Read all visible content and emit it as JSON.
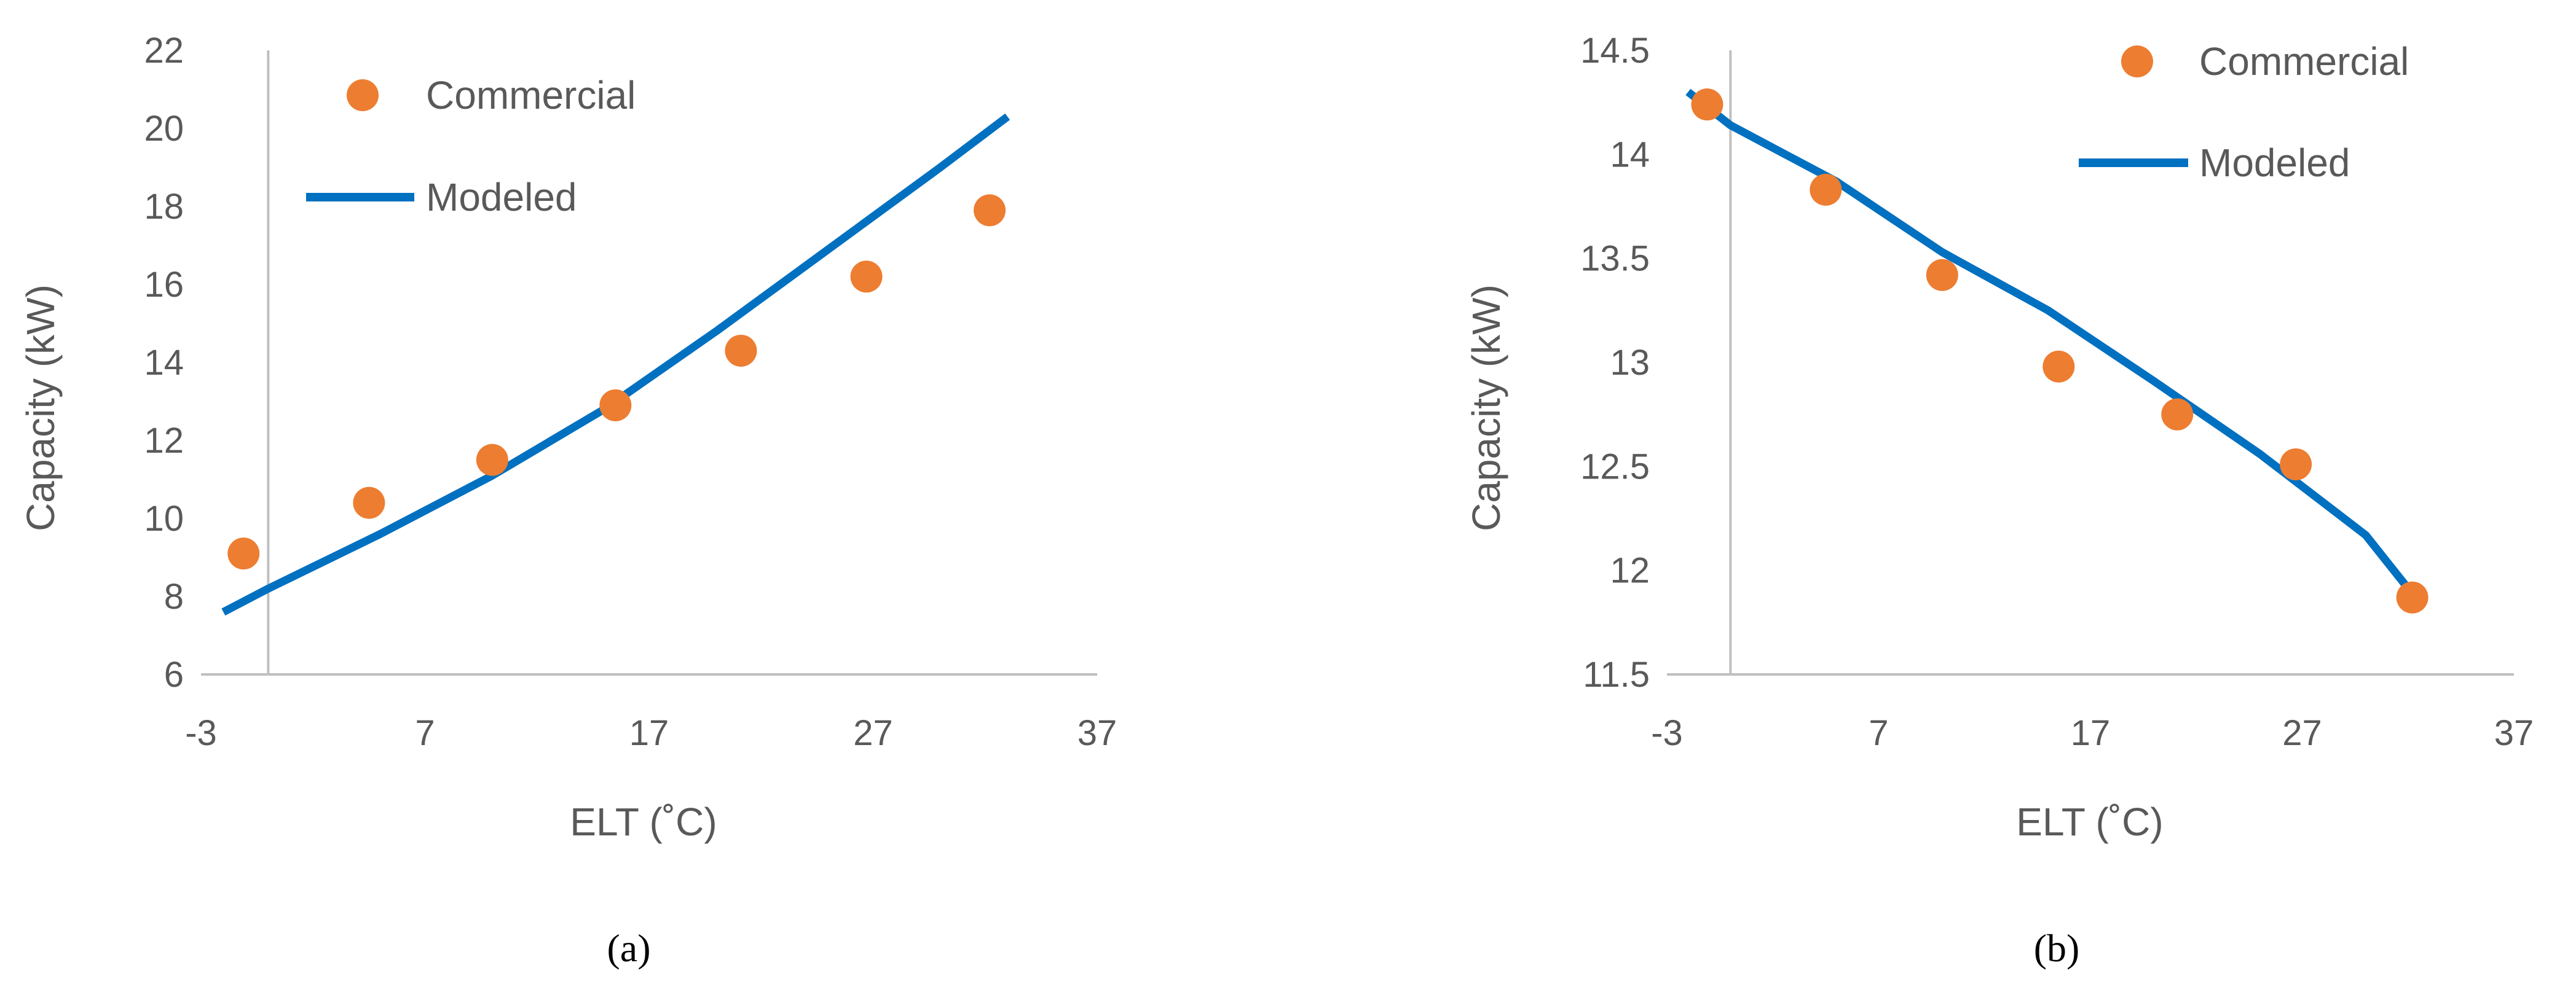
{
  "colors": {
    "commercial": "#ED7D31",
    "modeled": "#0070C0",
    "axis": "#BFBFBF",
    "text": "#595959"
  },
  "chart_data": [
    {
      "type": "scatter",
      "caption": "(a)",
      "xlabel": "ELT (˚C)",
      "ylabel": "Capacity (kW)",
      "xlim": [
        -3,
        37
      ],
      "ylim": [
        6,
        22
      ],
      "xticks": [
        -3,
        7,
        17,
        27,
        37
      ],
      "yticks": [
        6,
        8,
        10,
        12,
        14,
        16,
        18,
        20,
        22
      ],
      "xtick_labels": [
        "-3",
        "7",
        "17",
        "27",
        "37"
      ],
      "ytick_labels": [
        "6",
        "8",
        "10",
        "12",
        "14",
        "16",
        "18",
        "20",
        "22"
      ],
      "y_axis_crossing_x": 0,
      "grid": false,
      "legend": "top-left",
      "series": [
        {
          "name": "Commercial",
          "kind": "scatter",
          "x": [
            -1.1,
            4.5,
            10,
            15.5,
            21.1,
            26.7,
            32.2
          ],
          "y": [
            9.1,
            10.4,
            11.5,
            12.9,
            14.3,
            16.2,
            17.9
          ]
        },
        {
          "name": "Modeled",
          "kind": "line",
          "x": [
            -2,
            0,
            5,
            10,
            15,
            20,
            25,
            30,
            33
          ],
          "y": [
            7.6,
            8.2,
            9.6,
            11.1,
            12.8,
            14.8,
            16.9,
            19.0,
            20.3
          ]
        }
      ]
    },
    {
      "type": "scatter",
      "caption": "(b)",
      "xlabel": "ELT (˚C)",
      "ylabel": "Capacity (kW)",
      "xlim": [
        -3,
        37
      ],
      "ylim": [
        11.5,
        14.5
      ],
      "xticks": [
        -3,
        7,
        17,
        27,
        37
      ],
      "yticks": [
        11.5,
        12,
        12.5,
        13,
        13.5,
        14,
        14.5
      ],
      "xtick_labels": [
        "-3",
        "7",
        "17",
        "27",
        "37"
      ],
      "ytick_labels": [
        "11.5",
        "12",
        "12.5",
        "13",
        "13.5",
        "14",
        "14.5"
      ],
      "y_axis_crossing_x": 0,
      "grid": false,
      "legend": "top-right",
      "series": [
        {
          "name": "Commercial",
          "kind": "scatter",
          "x": [
            -1.1,
            4.5,
            10,
            15.5,
            21.1,
            26.7,
            32.2
          ],
          "y": [
            14.24,
            13.83,
            13.42,
            12.98,
            12.75,
            12.51,
            11.87
          ]
        },
        {
          "name": "Modeled",
          "kind": "line",
          "x": [
            -2,
            0,
            5,
            10,
            15,
            20,
            25,
            30,
            32.5
          ],
          "y": [
            14.3,
            14.14,
            13.87,
            13.53,
            13.25,
            12.91,
            12.56,
            12.17,
            11.85
          ]
        }
      ]
    }
  ]
}
